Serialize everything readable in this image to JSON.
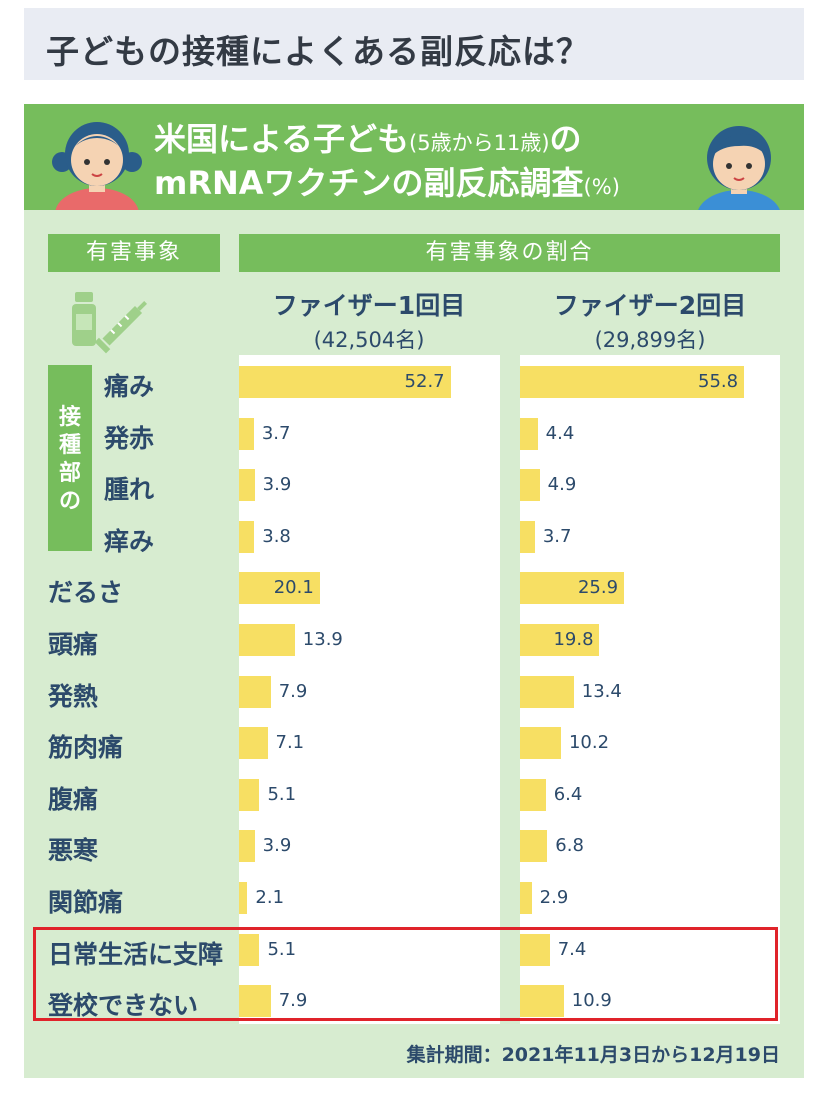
{
  "page_title": "子どもの接種によくある副反応は？",
  "banner": {
    "line1_main": "米国による子ども",
    "line1_paren": "(5歳から11歳)",
    "line1_tail": "の",
    "line2_main": "mRNAワクチンの副反応調査",
    "line2_unit": "(%)"
  },
  "header_event": "有害事象",
  "header_ratio": "有害事象の割合",
  "injection_site_label": [
    "接",
    "種",
    "部",
    "の"
  ],
  "colors": {
    "green": "#76bd5c",
    "bar": "#f7df63",
    "text": "#2c4a6b",
    "highlight": "#e0232a"
  },
  "chart_data": {
    "type": "bar",
    "orientation": "horizontal",
    "unit": "%",
    "categories": [
      "痛み",
      "発赤",
      "腫れ",
      "痒み",
      "だるさ",
      "頭痛",
      "発熱",
      "筋肉痛",
      "腹痛",
      "悪寒",
      "関節痛",
      "日常生活に支障",
      "登校できない"
    ],
    "series": [
      {
        "name": "ファイザー1回目",
        "n_label": "(42,504名)",
        "values": [
          52.7,
          3.7,
          3.9,
          3.8,
          20.1,
          13.9,
          7.9,
          7.1,
          5.1,
          3.9,
          2.1,
          5.1,
          7.9
        ]
      },
      {
        "name": "ファイザー2回目",
        "n_label": "(29,899名)",
        "values": [
          55.8,
          4.4,
          4.9,
          3.7,
          25.9,
          19.8,
          13.4,
          10.2,
          6.4,
          6.8,
          2.9,
          7.4,
          10.9
        ]
      }
    ],
    "highlighted_categories": [
      "日常生活に支障",
      "登校できない"
    ]
  },
  "footer": "集計期間：2021年11月3日から12月19日"
}
